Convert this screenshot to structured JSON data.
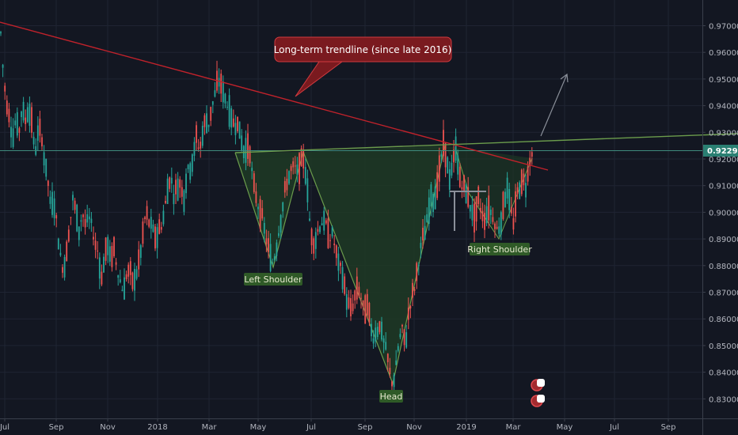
{
  "chart_data": {
    "type": "candlestick",
    "symbol_price": "0.92295",
    "y_axis": {
      "range": [
        0.8275,
        0.9775
      ],
      "ticks": [
        "0.97000",
        "0.96000",
        "0.95000",
        "0.94000",
        "0.93000",
        "0.92000",
        "0.91000",
        "0.90000",
        "0.89000",
        "0.88000",
        "0.87000",
        "0.86000",
        "0.85000",
        "0.84000",
        "0.83000"
      ]
    },
    "x_axis": {
      "ticks": [
        "Jul",
        "Sep",
        "Nov",
        "2018",
        "Mar",
        "May",
        "Jul",
        "Sep",
        "Nov",
        "2019",
        "Mar",
        "May",
        "Jul",
        "Sep"
      ]
    },
    "price_path": [
      [
        0,
        0.972
      ],
      [
        4,
        0.953
      ],
      [
        8,
        0.941
      ],
      [
        12,
        0.936
      ],
      [
        16,
        0.928
      ],
      [
        20,
        0.935
      ],
      [
        24,
        0.93
      ],
      [
        28,
        0.94
      ],
      [
        32,
        0.934
      ],
      [
        36,
        0.94
      ],
      [
        40,
        0.934
      ],
      [
        44,
        0.922
      ],
      [
        48,
        0.93
      ],
      [
        52,
        0.93
      ],
      [
        56,
        0.92
      ],
      [
        60,
        0.913
      ],
      [
        64,
        0.902
      ],
      [
        68,
        0.905
      ],
      [
        72,
        0.895
      ],
      [
        76,
        0.884
      ],
      [
        80,
        0.878
      ],
      [
        84,
        0.885
      ],
      [
        88,
        0.895
      ],
      [
        92,
        0.905
      ],
      [
        96,
        0.9
      ],
      [
        100,
        0.893
      ],
      [
        104,
        0.9
      ],
      [
        108,
        0.895
      ],
      [
        112,
        0.898
      ],
      [
        116,
        0.895
      ],
      [
        120,
        0.888
      ],
      [
        124,
        0.885
      ],
      [
        128,
        0.875
      ],
      [
        132,
        0.883
      ],
      [
        136,
        0.888
      ],
      [
        140,
        0.882
      ],
      [
        144,
        0.886
      ],
      [
        148,
        0.879
      ],
      [
        152,
        0.874
      ],
      [
        156,
        0.87
      ],
      [
        160,
        0.877
      ],
      [
        164,
        0.878
      ],
      [
        168,
        0.873
      ],
      [
        172,
        0.877
      ],
      [
        176,
        0.882
      ],
      [
        180,
        0.89
      ],
      [
        184,
        0.9
      ],
      [
        188,
        0.896
      ],
      [
        192,
        0.895
      ],
      [
        196,
        0.89
      ],
      [
        200,
        0.893
      ],
      [
        204,
        0.895
      ],
      [
        208,
        0.901
      ],
      [
        212,
        0.91
      ],
      [
        216,
        0.913
      ],
      [
        220,
        0.906
      ],
      [
        224,
        0.91
      ],
      [
        228,
        0.911
      ],
      [
        232,
        0.905
      ],
      [
        236,
        0.915
      ],
      [
        240,
        0.917
      ],
      [
        244,
        0.921
      ],
      [
        248,
        0.928
      ],
      [
        252,
        0.923
      ],
      [
        256,
        0.93
      ],
      [
        260,
        0.935
      ],
      [
        264,
        0.933
      ],
      [
        268,
        0.94
      ],
      [
        272,
        0.945
      ],
      [
        276,
        0.95
      ],
      [
        280,
        0.947
      ],
      [
        284,
        0.943
      ],
      [
        288,
        0.94
      ],
      [
        292,
        0.935
      ],
      [
        296,
        0.933
      ],
      [
        300,
        0.934
      ],
      [
        304,
        0.928
      ],
      [
        308,
        0.923
      ],
      [
        312,
        0.925
      ],
      [
        316,
        0.922
      ],
      [
        320,
        0.91
      ],
      [
        324,
        0.905
      ],
      [
        328,
        0.9
      ],
      [
        332,
        0.897
      ],
      [
        336,
        0.89
      ],
      [
        340,
        0.885
      ],
      [
        344,
        0.881
      ],
      [
        348,
        0.885
      ],
      [
        352,
        0.893
      ],
      [
        356,
        0.9
      ],
      [
        360,
        0.908
      ],
      [
        364,
        0.913
      ],
      [
        368,
        0.916
      ],
      [
        372,
        0.917
      ],
      [
        376,
        0.915
      ],
      [
        380,
        0.918
      ],
      [
        384,
        0.92
      ],
      [
        388,
        0.91
      ],
      [
        392,
        0.893
      ],
      [
        396,
        0.888
      ],
      [
        400,
        0.892
      ],
      [
        404,
        0.895
      ],
      [
        408,
        0.897
      ],
      [
        412,
        0.895
      ],
      [
        416,
        0.89
      ],
      [
        420,
        0.892
      ],
      [
        424,
        0.885
      ],
      [
        428,
        0.88
      ],
      [
        432,
        0.878
      ],
      [
        436,
        0.87
      ],
      [
        440,
        0.865
      ],
      [
        444,
        0.863
      ],
      [
        448,
        0.868
      ],
      [
        452,
        0.872
      ],
      [
        456,
        0.868
      ],
      [
        460,
        0.862
      ],
      [
        464,
        0.866
      ],
      [
        468,
        0.857
      ],
      [
        472,
        0.853
      ],
      [
        476,
        0.856
      ],
      [
        480,
        0.858
      ],
      [
        484,
        0.852
      ],
      [
        488,
        0.848
      ],
      [
        492,
        0.84
      ],
      [
        496,
        0.835
      ],
      [
        500,
        0.842
      ],
      [
        504,
        0.852
      ],
      [
        508,
        0.856
      ],
      [
        512,
        0.85
      ],
      [
        516,
        0.862
      ],
      [
        520,
        0.868
      ],
      [
        524,
        0.872
      ],
      [
        528,
        0.88
      ],
      [
        532,
        0.888
      ],
      [
        536,
        0.892
      ],
      [
        540,
        0.898
      ],
      [
        544,
        0.906
      ],
      [
        548,
        0.905
      ],
      [
        552,
        0.91
      ],
      [
        556,
        0.918
      ],
      [
        560,
        0.925
      ],
      [
        564,
        0.92
      ],
      [
        568,
        0.912
      ],
      [
        572,
        0.918
      ],
      [
        576,
        0.925
      ],
      [
        580,
        0.913
      ],
      [
        584,
        0.91
      ],
      [
        588,
        0.908
      ],
      [
        592,
        0.905
      ],
      [
        596,
        0.9
      ],
      [
        600,
        0.897
      ],
      [
        604,
        0.905
      ],
      [
        608,
        0.9
      ],
      [
        612,
        0.897
      ],
      [
        616,
        0.902
      ],
      [
        620,
        0.9
      ],
      [
        624,
        0.897
      ],
      [
        628,
        0.893
      ],
      [
        632,
        0.896
      ],
      [
        636,
        0.903
      ],
      [
        640,
        0.91
      ],
      [
        644,
        0.903
      ],
      [
        648,
        0.895
      ],
      [
        652,
        0.905
      ],
      [
        656,
        0.91
      ],
      [
        660,
        0.912
      ],
      [
        664,
        0.91
      ],
      [
        668,
        0.918
      ],
      [
        672,
        0.923
      ],
      [
        675,
        0.923
      ]
    ],
    "trendline_label": "Long-term trendline (since late 2016)",
    "annotations": {
      "left_shoulder": "Left Shoulder",
      "head": "Head",
      "right_shoulder": "Right Shoulder"
    },
    "badges": [
      "2",
      "2"
    ],
    "colors": {
      "background": "#131722",
      "up": "#26a69a",
      "down": "#ef5350",
      "trendline": "#c0222b",
      "neckline": "#6b9c4c",
      "price_line": "#3f8c7e",
      "pattern_fill": "#1e3a24",
      "callout_bg": "#7a1a1f",
      "label_bg": "#2f5a27",
      "arrow": "#8a8f99"
    }
  }
}
